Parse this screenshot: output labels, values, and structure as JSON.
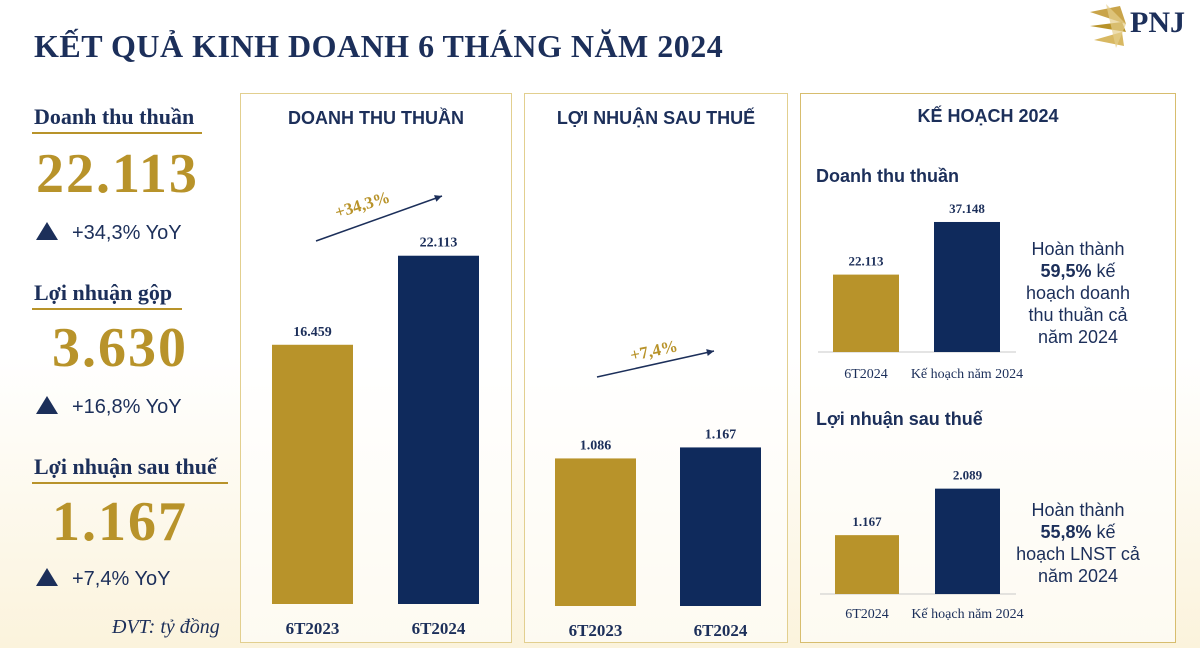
{
  "title": "KẾT QUẢ KINH DOANH 6 THÁNG NĂM 2024",
  "logo_text": "PNJ",
  "unit_note": "ĐVT: tỷ đồng",
  "kpis": [
    {
      "label": "Doanh thu thuần",
      "value": "22.113",
      "change": "+34,3% YoY"
    },
    {
      "label": "Lợi nhuận gộp",
      "value": "3.630",
      "change": "+16,8% YoY"
    },
    {
      "label": "Lợi nhuận sau thuế",
      "value": "1.167",
      "change": "+7,4% YoY"
    }
  ],
  "panels": {
    "revenue_title": "DOANH THU THUẦN",
    "profit_title": "LỢI NHUẬN SAU THUẾ",
    "plan_title": "KẾ HOẠCH 2024",
    "plan_revenue_subtitle": "Doanh thu thuần",
    "plan_profit_subtitle": "Lợi nhuận sau thuế",
    "plan_revenue_note": {
      "l1": "Hoàn thành",
      "l2_bold": "59,5%",
      "l2_rest": " kế",
      "l3": "hoạch doanh",
      "l4": "thu thuần cả",
      "l5": "năm 2024"
    },
    "plan_profit_note": {
      "l1": "Hoàn thành",
      "l2_bold": "55,8%",
      "l2_rest": " kế",
      "l3": "hoạch LNST cả",
      "l4": "năm 2024"
    }
  },
  "colors": {
    "gold": "#b8932a",
    "navy": "#0f2a5c",
    "text": "#1c2f5a"
  },
  "chart_data": [
    {
      "type": "bar",
      "title": "DOANH THU THUẦN",
      "categories": [
        "6T2023",
        "6T2024"
      ],
      "values": [
        16459,
        22113
      ],
      "value_labels": [
        "16.459",
        "22.113"
      ],
      "growth_label": "+34,3%",
      "ylim": [
        0,
        24000
      ]
    },
    {
      "type": "bar",
      "title": "LỢI NHUẬN SAU THUẾ",
      "categories": [
        "6T2023",
        "6T2024"
      ],
      "values": [
        1086,
        1167
      ],
      "value_labels": [
        "1.086",
        "1.167"
      ],
      "growth_label": "+7,4%",
      "ylim": [
        0,
        1700
      ]
    },
    {
      "type": "bar",
      "title": "Doanh thu thuần",
      "categories": [
        "6T2024",
        "Kế hoạch năm 2024"
      ],
      "values": [
        22113,
        37148
      ],
      "value_labels": [
        "22.113",
        "37.148"
      ],
      "ylim": [
        0,
        40000
      ]
    },
    {
      "type": "bar",
      "title": "Lợi nhuận sau thuế",
      "categories": [
        "6T2024",
        "Kế hoạch năm 2024"
      ],
      "values": [
        1167,
        2089
      ],
      "value_labels": [
        "1.167",
        "2.089"
      ],
      "ylim": [
        0,
        2300
      ]
    }
  ]
}
